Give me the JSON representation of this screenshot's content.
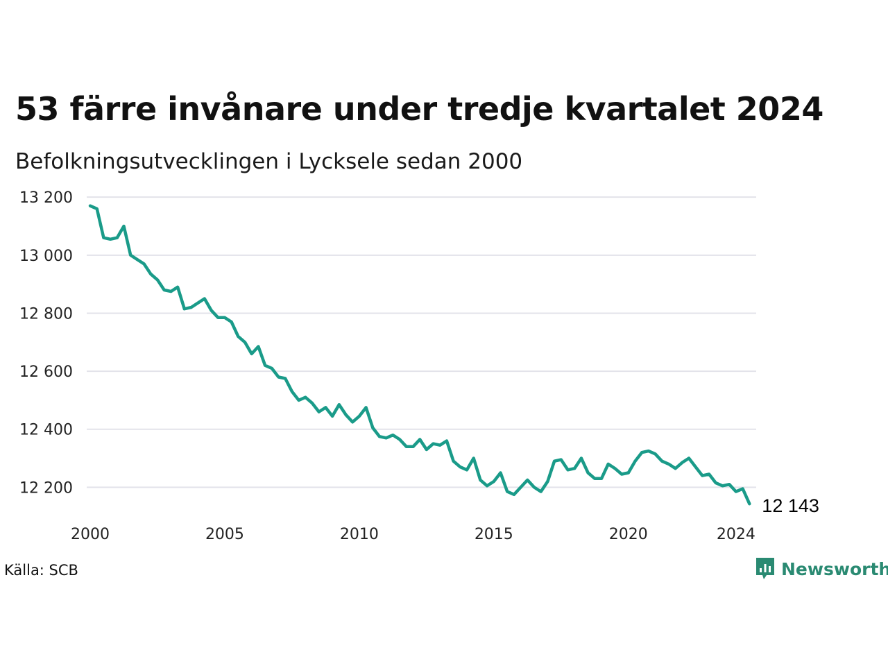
{
  "brand": {
    "name": "Newsworthy",
    "accent_color": "#1a9b89",
    "logo_color": "#2a8a72"
  },
  "source": "Källa: SCB",
  "chart_data": {
    "type": "line",
    "title": "53 färre invånare under tredje kvartalet 2024",
    "subtitle": "Befolkningsutvecklingen i Lycksele sedan 2000",
    "xlabel": "",
    "ylabel": "",
    "x_ticks": [
      "2000",
      "2005",
      "2010",
      "2015",
      "2020",
      "2024"
    ],
    "y_ticks": [
      "12 200",
      "12 400",
      "12 600",
      "12 800",
      "13 000",
      "13 200"
    ],
    "y_tick_values": [
      12200,
      12400,
      12600,
      12800,
      13000,
      13200
    ],
    "xlim": [
      2000,
      2024.75
    ],
    "ylim": [
      12110,
      13210
    ],
    "grid": true,
    "last_value_label": "12 143",
    "series": [
      {
        "x": [
          2000.0,
          2000.25,
          2000.5,
          2000.75,
          2001.0,
          2001.25,
          2001.5,
          2001.75,
          2002.0,
          2002.25,
          2002.5,
          2002.75,
          2003.0,
          2003.25,
          2003.5,
          2003.75,
          2004.0,
          2004.25,
          2004.5,
          2004.75,
          2005.0,
          2005.25,
          2005.5,
          2005.75,
          2006.0,
          2006.25,
          2006.5,
          2006.75,
          2007.0,
          2007.25,
          2007.5,
          2007.75,
          2008.0,
          2008.25,
          2008.5,
          2008.75,
          2009.0,
          2009.25,
          2009.5,
          2009.75,
          2010.0,
          2010.25,
          2010.5,
          2010.75,
          2011.0,
          2011.25,
          2011.5,
          2011.75,
          2012.0,
          2012.25,
          2012.5,
          2012.75,
          2013.0,
          2013.25,
          2013.5,
          2013.75,
          2014.0,
          2014.25,
          2014.5,
          2014.75,
          2015.0,
          2015.25,
          2015.5,
          2015.75,
          2016.0,
          2016.25,
          2016.5,
          2016.75,
          2017.0,
          2017.25,
          2017.5,
          2017.75,
          2018.0,
          2018.25,
          2018.5,
          2018.75,
          2019.0,
          2019.25,
          2019.5,
          2019.75,
          2020.0,
          2020.25,
          2020.5,
          2020.75,
          2021.0,
          2021.25,
          2021.5,
          2021.75,
          2022.0,
          2022.25,
          2022.5,
          2022.75,
          2023.0,
          2023.25,
          2023.5,
          2023.75,
          2024.0,
          2024.25,
          2024.5
        ],
        "values": [
          13170,
          13160,
          13060,
          13055,
          13060,
          13100,
          13000,
          12985,
          12970,
          12935,
          12915,
          12880,
          12875,
          12890,
          12815,
          12820,
          12835,
          12850,
          12810,
          12785,
          12785,
          12770,
          12720,
          12700,
          12660,
          12685,
          12620,
          12610,
          12580,
          12575,
          12530,
          12500,
          12510,
          12490,
          12460,
          12475,
          12445,
          12485,
          12450,
          12425,
          12445,
          12475,
          12405,
          12375,
          12370,
          12380,
          12365,
          12340,
          12340,
          12365,
          12330,
          12350,
          12345,
          12360,
          12290,
          12270,
          12260,
          12300,
          12225,
          12205,
          12220,
          12250,
          12185,
          12175,
          12200,
          12225,
          12200,
          12185,
          12220,
          12290,
          12295,
          12260,
          12265,
          12300,
          12250,
          12230,
          12230,
          12280,
          12265,
          12245,
          12250,
          12290,
          12320,
          12325,
          12315,
          12290,
          12280,
          12265,
          12285,
          12300,
          12270,
          12240,
          12245,
          12215,
          12205,
          12210,
          12185,
          12195,
          12143
        ]
      }
    ]
  }
}
